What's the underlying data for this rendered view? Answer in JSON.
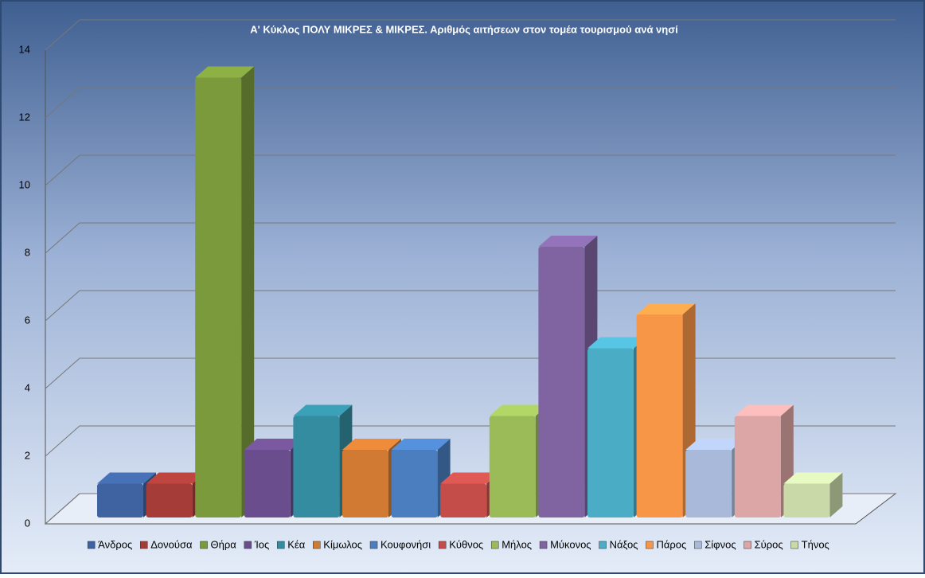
{
  "chart_data": {
    "type": "bar3d",
    "title": "Α' Κύκλος ΠΟΛΥ ΜΙΚΡΕΣ & ΜΙΚΡΕΣ. Αριθμός αιτήσεων στον τομέα τουρισμού ανά νησί",
    "categories": [
      "Άνδρος",
      "Δονούσα",
      "Θήρα",
      "Ίος",
      "Κέα",
      "Κίμωλος",
      "Κουφονήσι",
      "Κύθνος",
      "Μήλος",
      "Μύκονος",
      "Νάξος",
      "Πάρος",
      "Σίφνος",
      "Σύρος",
      "Τήνος"
    ],
    "values": [
      1,
      1,
      13,
      2,
      3,
      2,
      2,
      1,
      3,
      8,
      5,
      6,
      2,
      3,
      1
    ],
    "colors": [
      "#3e63a0",
      "#a63c38",
      "#7b9a3c",
      "#6a4d8c",
      "#338ca0",
      "#d07a33",
      "#4a7ebf",
      "#c44d4a",
      "#9bbb59",
      "#8064a2",
      "#4bacc6",
      "#f79646",
      "#a9b9d9",
      "#dba6a5",
      "#c9d9a8"
    ],
    "ylim": [
      0,
      14
    ],
    "yticks": [
      0,
      2,
      4,
      6,
      8,
      10,
      12,
      14
    ],
    "grid": true,
    "legend": "bottom"
  }
}
